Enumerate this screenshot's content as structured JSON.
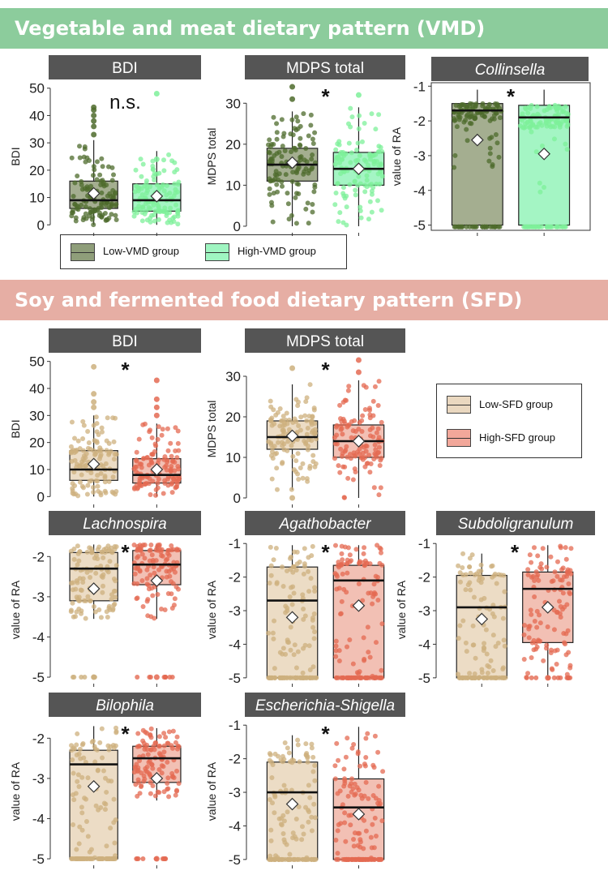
{
  "sections": {
    "vmd_title": "Vegetable and meat dietary pattern (VMD)",
    "sfd_title": "Soy and fermented food dietary pattern (SFD)"
  },
  "legends": {
    "vmd": {
      "low": "Low-VMD group",
      "high": "High-VMD group",
      "low_color": "#8f9e7a",
      "high_color": "#9ff5c1"
    },
    "sfd": {
      "low": "Low-SFD group",
      "high": "High-SFD group",
      "low_color": "#ead8c0",
      "high_color": "#f2a79a"
    }
  },
  "colors": {
    "vmd_low_box": "#a4ae90",
    "vmd_high_box": "#a4f5c4",
    "vmd_low_points": "#4d6b2c",
    "vmd_high_points": "#7ef09a",
    "sfd_low_box": "#ecdcc5",
    "sfd_high_box": "#f2c0b4",
    "sfd_low_points": "#cdb07e",
    "sfd_high_points": "#e46a52",
    "title_bar": "#555555"
  },
  "chart_data": [
    {
      "id": "vmd-bdi",
      "type": "box",
      "title": "BDI",
      "title_italic": false,
      "ylabel": "BDI",
      "ylim": [
        -2,
        52
      ],
      "yticks": [
        0,
        10,
        20,
        30,
        40,
        50
      ],
      "significance": "n.s.",
      "palette": "vmd",
      "groups": [
        {
          "name": "Low-VMD group",
          "min": 0,
          "q1": 6,
          "median": 9,
          "q3": 16,
          "max": 31,
          "mean": 11.5,
          "outliers": [
            33,
            36,
            38,
            40,
            42,
            43
          ],
          "n_points": 120
        },
        {
          "name": "High-VMD group",
          "min": 0,
          "q1": 5,
          "median": 9,
          "q3": 15,
          "max": 27,
          "mean": 10.5,
          "outliers": [
            48,
            24
          ],
          "n_points": 120
        }
      ]
    },
    {
      "id": "vmd-mdps",
      "type": "box",
      "title": "MDPS total",
      "title_italic": false,
      "ylabel": "MDPS total",
      "ylim": [
        -1,
        35
      ],
      "yticks": [
        0,
        10,
        20,
        30
      ],
      "significance": "*",
      "palette": "vmd",
      "groups": [
        {
          "name": "Low-VMD group",
          "min": 0,
          "q1": 11,
          "median": 15,
          "q3": 19,
          "max": 28,
          "mean": 15.5,
          "outliers": [
            34,
            31
          ],
          "n_points": 120
        },
        {
          "name": "High-VMD group",
          "min": 0,
          "q1": 10,
          "median": 14,
          "q3": 18,
          "max": 29,
          "mean": 14,
          "outliers": [
            32
          ],
          "n_points": 120
        }
      ]
    },
    {
      "id": "vmd-collinsella",
      "type": "box",
      "title": "Collinsella",
      "title_italic": true,
      "ylabel": "value of RA",
      "ylim": [
        -5.15,
        -0.9
      ],
      "yticks": [
        -1,
        -2,
        -3,
        -4,
        -5
      ],
      "significance": "*",
      "palette": "vmd",
      "groups": [
        {
          "name": "Low-VMD group",
          "min": -5,
          "q1": -5,
          "median": -1.7,
          "q3": -1.5,
          "max": -1.1,
          "mean": -2.55,
          "outliers": [],
          "n_points": 100,
          "floor_points": 30,
          "dense": true
        },
        {
          "name": "High-VMD group",
          "min": -5,
          "q1": -5,
          "median": -1.9,
          "q3": -1.55,
          "max": -1.1,
          "mean": -2.95,
          "outliers": [],
          "n_points": 100,
          "floor_points": 35,
          "dense": true
        }
      ]
    },
    {
      "id": "sfd-bdi",
      "type": "box",
      "title": "BDI",
      "title_italic": false,
      "ylabel": "BDI",
      "ylim": [
        -2,
        52
      ],
      "yticks": [
        0,
        10,
        20,
        30,
        40,
        50
      ],
      "significance": "*",
      "palette": "sfd",
      "groups": [
        {
          "name": "Low-SFD group",
          "min": 0,
          "q1": 6,
          "median": 10,
          "q3": 17,
          "max": 30,
          "mean": 12,
          "outliers": [
            33,
            35,
            38,
            48
          ],
          "n_points": 120
        },
        {
          "name": "High-SFD group",
          "min": 0,
          "q1": 5,
          "median": 8,
          "q3": 14,
          "max": 27,
          "mean": 10,
          "outliers": [
            30,
            33,
            36,
            43
          ],
          "n_points": 120
        }
      ]
    },
    {
      "id": "sfd-mdps",
      "type": "box",
      "title": "MDPS total",
      "title_italic": false,
      "ylabel": "MDPS total",
      "ylim": [
        -1,
        35
      ],
      "yticks": [
        0,
        10,
        20,
        30
      ],
      "significance": "*",
      "palette": "sfd",
      "groups": [
        {
          "name": "Low-SFD group",
          "min": 2,
          "q1": 12,
          "median": 15,
          "q3": 19,
          "max": 28,
          "mean": 15.3,
          "outliers": [
            0,
            32
          ],
          "n_points": 120
        },
        {
          "name": "High-SFD group",
          "min": 0,
          "q1": 10,
          "median": 14,
          "q3": 18,
          "max": 29,
          "mean": 14,
          "outliers": [
            34,
            31
          ],
          "n_points": 120
        }
      ]
    },
    {
      "id": "sfd-lachnospira",
      "type": "box",
      "title": "Lachnospira",
      "title_italic": true,
      "ylabel": "value of RA",
      "ylim": [
        -5.1,
        -1.55
      ],
      "yticks": [
        -2,
        -3,
        -4,
        -5
      ],
      "significance": "*",
      "palette": "sfd",
      "groups": [
        {
          "name": "Low-SFD group",
          "min": -3.55,
          "q1": -3.1,
          "median": -2.3,
          "q3": -1.9,
          "max": -1.7,
          "mean": -2.8,
          "outliers": [
            -5
          ],
          "n_points": 110,
          "floor_points": 8
        },
        {
          "name": "High-SFD group",
          "min": -3.55,
          "q1": -2.7,
          "median": -2.2,
          "q3": -1.85,
          "max": -1.7,
          "mean": -2.6,
          "outliers": [
            -5
          ],
          "n_points": 110,
          "floor_points": 10
        }
      ]
    },
    {
      "id": "sfd-agathobacter",
      "type": "box",
      "title": "Agathobacter",
      "title_italic": true,
      "ylabel": "value of RA",
      "ylim": [
        -5.1,
        -0.85
      ],
      "yticks": [
        -1,
        -2,
        -3,
        -4,
        -5
      ],
      "significance": "*",
      "palette": "sfd",
      "groups": [
        {
          "name": "Low-SFD group",
          "min": -5,
          "q1": -5,
          "median": -2.7,
          "q3": -1.7,
          "max": -1.05,
          "mean": -3.2,
          "outliers": [],
          "n_points": 110,
          "floor_points": 25
        },
        {
          "name": "High-SFD group",
          "min": -5,
          "q1": -5,
          "median": -2.1,
          "q3": -1.65,
          "max": -1.05,
          "mean": -2.85,
          "outliers": [],
          "n_points": 110,
          "floor_points": 25
        }
      ]
    },
    {
      "id": "sfd-subdoligranulum",
      "type": "box",
      "title": "Subdoligranulum",
      "title_italic": true,
      "ylabel": "value of RA",
      "ylim": [
        -5.1,
        -0.85
      ],
      "yticks": [
        -1,
        -2,
        -3,
        -4,
        -5
      ],
      "significance": "*",
      "palette": "sfd",
      "groups": [
        {
          "name": "Low-SFD group",
          "min": -5,
          "q1": -5,
          "median": -2.9,
          "q3": -1.95,
          "max": -1.3,
          "mean": -3.25,
          "outliers": [],
          "n_points": 110,
          "floor_points": 25
        },
        {
          "name": "High-SFD group",
          "min": -5,
          "q1": -3.95,
          "median": -2.35,
          "q3": -1.85,
          "max": -1.05,
          "mean": -2.9,
          "outliers": [
            -5
          ],
          "n_points": 110,
          "floor_points": 12
        }
      ]
    },
    {
      "id": "sfd-bilophila",
      "type": "box",
      "title": "Bilophila",
      "title_italic": true,
      "ylabel": "value of RA",
      "ylim": [
        -5.1,
        -1.55
      ],
      "yticks": [
        -2,
        -3,
        -4,
        -5
      ],
      "significance": "*",
      "palette": "sfd",
      "groups": [
        {
          "name": "Low-SFD group",
          "min": -5,
          "q1": -5,
          "median": -2.65,
          "q3": -2.3,
          "max": -1.7,
          "mean": -3.2,
          "outliers": [],
          "n_points": 110,
          "floor_points": 25
        },
        {
          "name": "High-SFD group",
          "min": -3.55,
          "q1": -3.1,
          "median": -2.5,
          "q3": -2.2,
          "max": -1.75,
          "mean": -3.0,
          "outliers": [
            -5
          ],
          "n_points": 110,
          "floor_points": 10
        }
      ]
    },
    {
      "id": "sfd-escherichia",
      "type": "box",
      "title": "Escherichia-Shigella",
      "title_italic": true,
      "ylabel": "value of RA",
      "ylim": [
        -5.1,
        -0.85
      ],
      "yticks": [
        -1,
        -2,
        -3,
        -4,
        -5
      ],
      "significance": "*",
      "palette": "sfd",
      "groups": [
        {
          "name": "Low-SFD group",
          "min": -5,
          "q1": -5,
          "median": -3.0,
          "q3": -2.1,
          "max": -1.3,
          "mean": -3.35,
          "outliers": [],
          "n_points": 110,
          "floor_points": 25
        },
        {
          "name": "High-SFD group",
          "min": -5,
          "q1": -5,
          "median": -3.45,
          "q3": -2.6,
          "max": -1.05,
          "mean": -3.65,
          "outliers": [],
          "n_points": 110,
          "floor_points": 35
        }
      ]
    }
  ]
}
